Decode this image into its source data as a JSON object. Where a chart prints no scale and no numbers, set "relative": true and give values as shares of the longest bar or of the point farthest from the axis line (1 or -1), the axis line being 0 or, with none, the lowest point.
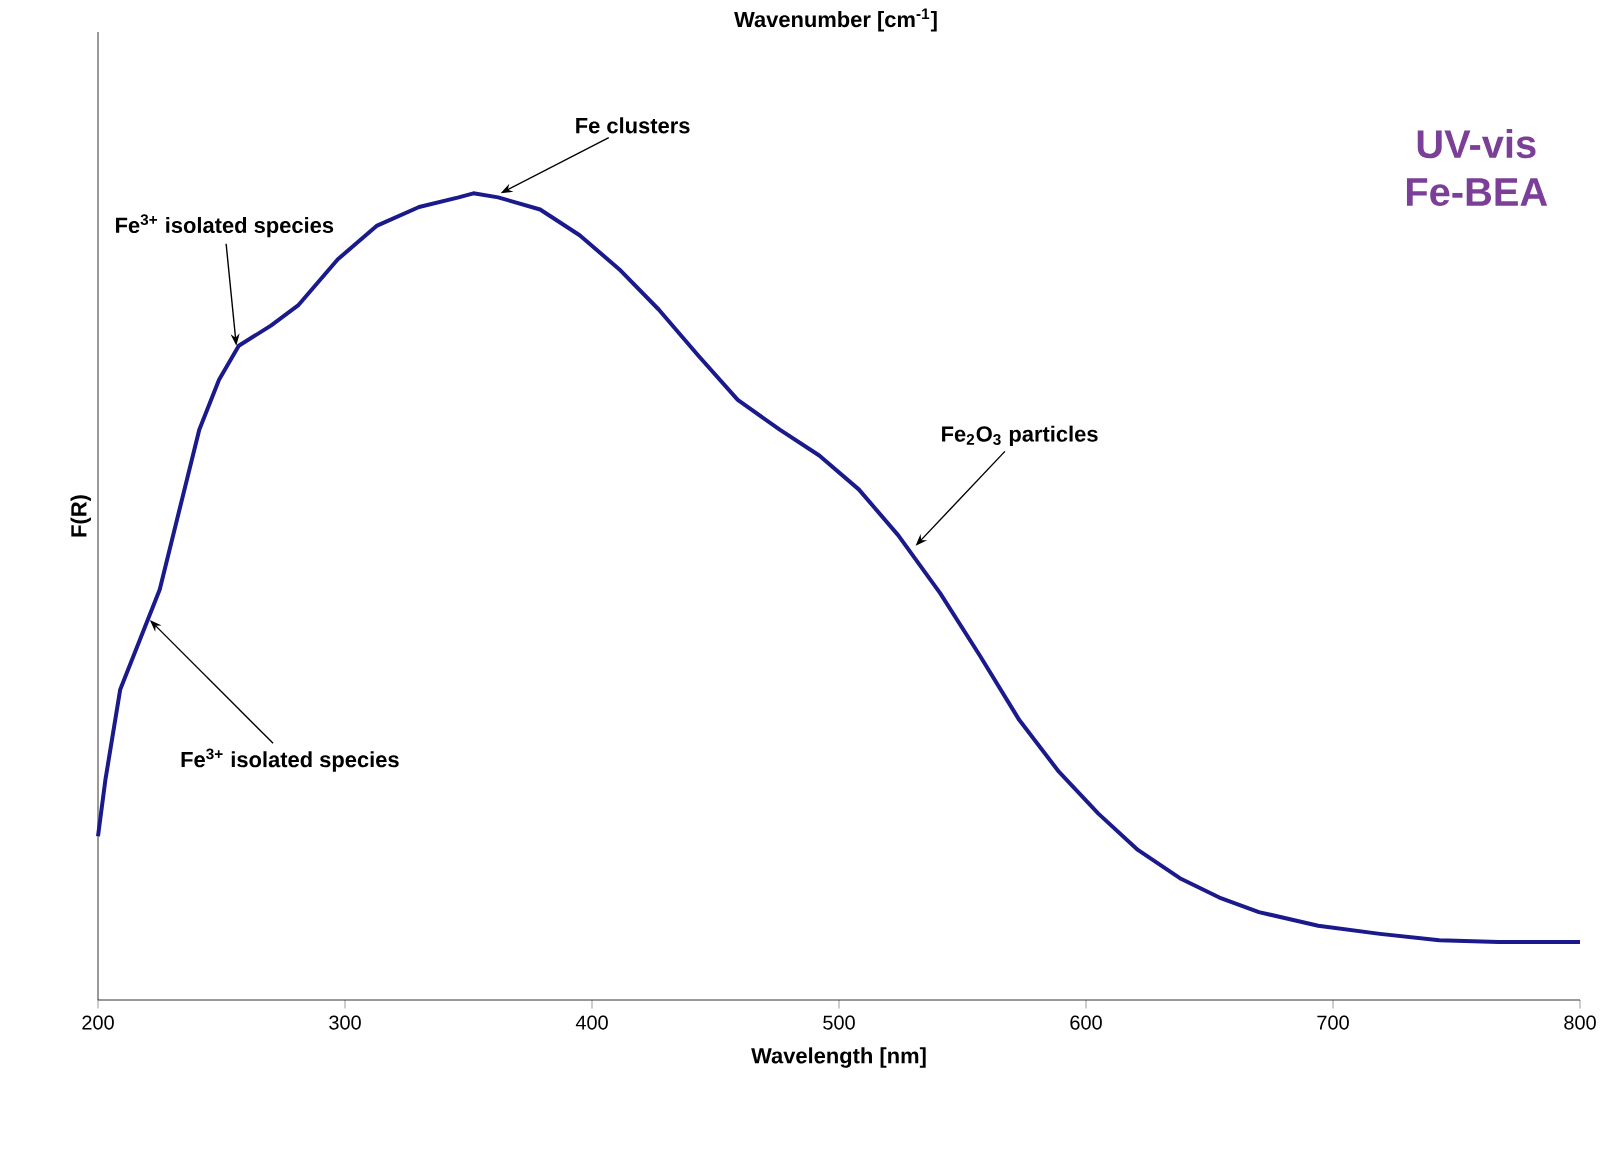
{
  "chart_data": {
    "type": "line",
    "relative": true,
    "xlabel": "Wavelength [nm]",
    "ylabel": "F(R)",
    "x2label": "Wavenumber [cm$^{-1}$]",
    "xlim": [
      200,
      800
    ],
    "xticks": [
      200,
      300,
      400,
      500,
      600,
      700,
      800
    ],
    "tick_labels": "x",
    "grid": false,
    "marker": "none",
    "line_style": "solid",
    "x": [
      200,
      203,
      209,
      217,
      225,
      233,
      241,
      249,
      257,
      270,
      281,
      297,
      313,
      330,
      346,
      352,
      362,
      379,
      395,
      411,
      427,
      443,
      459,
      476,
      492,
      508,
      524,
      541,
      557,
      573,
      589,
      605,
      621,
      638,
      654,
      670,
      694,
      719,
      743,
      767,
      800
    ],
    "series": [
      {
        "color": "#1a1a8c",
        "values": [
          0.203,
          0.273,
          0.385,
          0.447,
          0.509,
          0.608,
          0.707,
          0.769,
          0.811,
          0.836,
          0.861,
          0.918,
          0.96,
          0.983,
          0.995,
          1.0,
          0.995,
          0.98,
          0.948,
          0.906,
          0.856,
          0.799,
          0.744,
          0.707,
          0.675,
          0.633,
          0.576,
          0.504,
          0.427,
          0.347,
          0.283,
          0.231,
          0.186,
          0.151,
          0.127,
          0.109,
          0.092,
          0.082,
          0.074,
          0.072,
          0.072
        ]
      }
    ],
    "annotations": [
      {
        "text": "Fe$^{3+}$ isolated species",
        "x": 256,
        "y": 0.811
      },
      {
        "text": "Fe$^{3+}$ isolated species",
        "x": 221,
        "y": 0.471
      },
      {
        "text": "Fe clusters",
        "x": 363,
        "y": 1.0
      },
      {
        "text": "Fe$_{2}$O$_{3}$ particles",
        "x": 531,
        "y": 0.563
      },
      "UV-vis Fe-BEA"
    ]
  }
}
